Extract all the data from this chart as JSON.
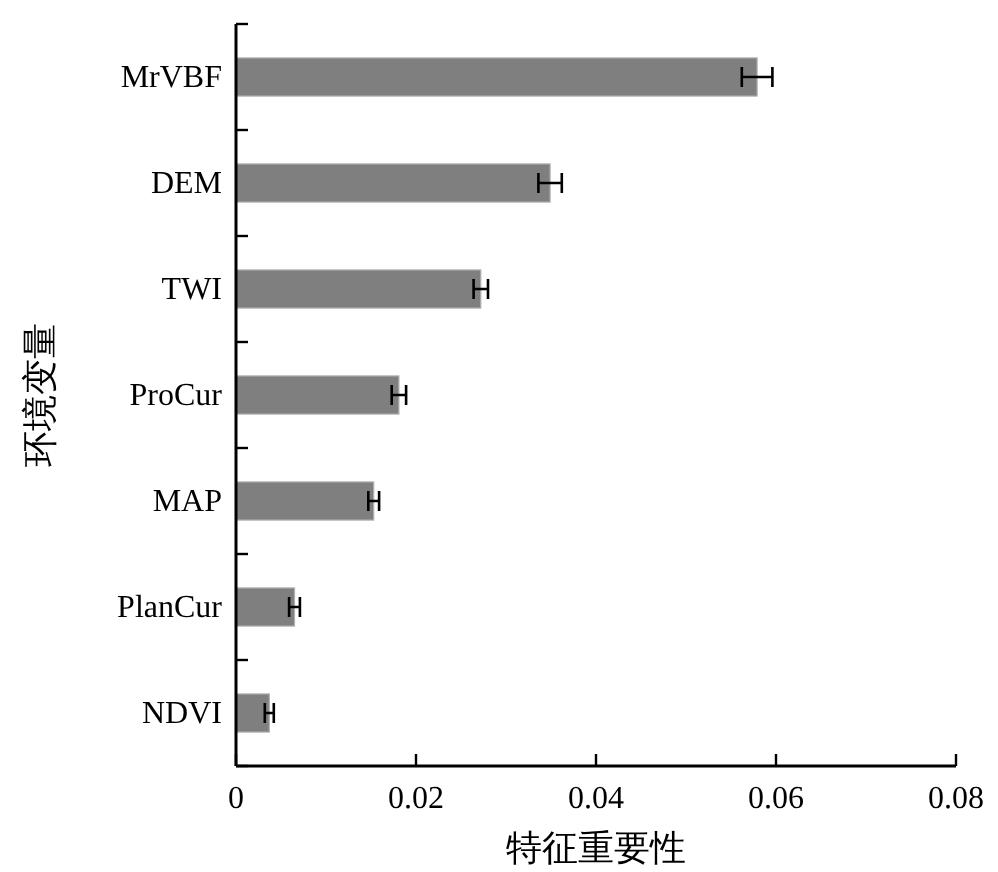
{
  "chart_data": {
    "type": "bar",
    "orientation": "horizontal",
    "xlabel": "特征重要性",
    "ylabel": "环境变量",
    "categories": [
      "MrVBF",
      "DEM",
      "TWI",
      "ProCur",
      "MAP",
      "PlanCur",
      "NDVI"
    ],
    "values": [
      0.0579,
      0.0349,
      0.0272,
      0.0181,
      0.0153,
      0.0065,
      0.0037
    ],
    "errors": [
      0.0017,
      0.0013,
      0.0008,
      0.0008,
      0.0006,
      0.0006,
      0.0005
    ],
    "color": "#7f7f7f",
    "xlim": [
      0,
      0.08
    ],
    "xticks": [
      0,
      0.02,
      0.04,
      0.06,
      0.08
    ],
    "grid": false
  }
}
